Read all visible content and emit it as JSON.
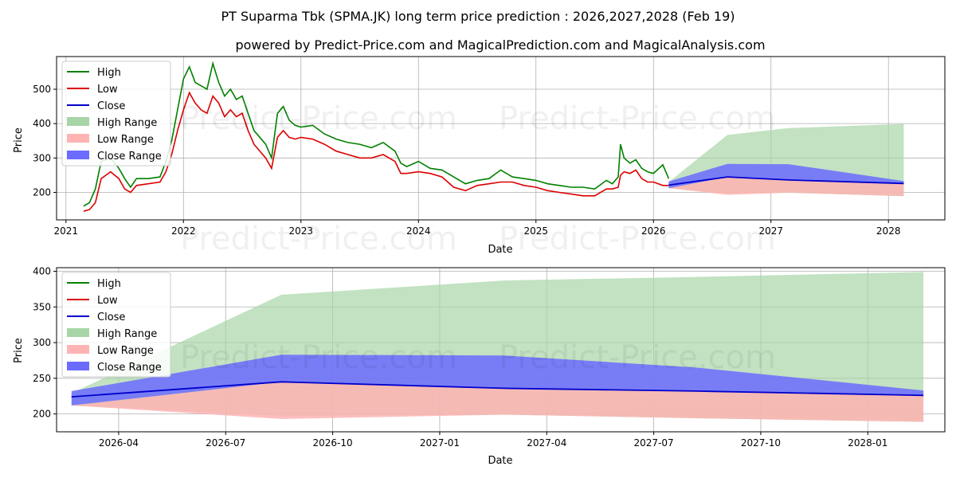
{
  "title_line1": "PT Suparma Tbk (SPMA.JK) long term price prediction : 2026,2027,2028 (Feb 19)",
  "title_line2": "powered by Predict-Price.com and MagicalPrediction.com and MagicalAnalysis.com",
  "watermark": "Predict-Price.com",
  "colors": {
    "high": "#008000",
    "low": "#ff0000",
    "close": "#0000cc",
    "high_range": "#a8d5a8",
    "low_range": "#ffb3b3",
    "close_range": "#6b6bff",
    "grid": "#b0b0b0"
  },
  "chart_data": [
    {
      "type": "line",
      "xlabel": "Date",
      "ylabel": "Price",
      "xlim": [
        2020.92,
        2028.48
      ],
      "ylim": [
        120,
        595
      ],
      "x_ticks": [
        2021,
        2022,
        2023,
        2024,
        2025,
        2026,
        2027,
        2028
      ],
      "x_tick_labels": [
        "2021",
        "2022",
        "2023",
        "2024",
        "2025",
        "2026",
        "2027",
        "2028"
      ],
      "y_ticks": [
        200,
        300,
        400,
        500
      ],
      "y_tick_labels": [
        "200",
        "300",
        "400",
        "500"
      ],
      "legend": [
        "High",
        "Low",
        "Close",
        "High Range",
        "Low Range",
        "Close Range"
      ],
      "legend_position": "top-left",
      "grid": true,
      "history": {
        "x": [
          2021.15,
          2021.2,
          2021.25,
          2021.3,
          2021.38,
          2021.45,
          2021.5,
          2021.55,
          2021.6,
          2021.7,
          2021.8,
          2021.85,
          2021.9,
          2021.95,
          2022.0,
          2022.05,
          2022.1,
          2022.15,
          2022.2,
          2022.25,
          2022.3,
          2022.35,
          2022.4,
          2022.45,
          2022.5,
          2022.55,
          2022.6,
          2022.7,
          2022.75,
          2022.8,
          2022.85,
          2022.9,
          2022.95,
          2023.0,
          2023.1,
          2023.2,
          2023.3,
          2023.4,
          2023.5,
          2023.6,
          2023.7,
          2023.8,
          2023.85,
          2023.9,
          2024.0,
          2024.1,
          2024.2,
          2024.3,
          2024.4,
          2024.5,
          2024.6,
          2024.7,
          2024.8,
          2024.9,
          2025.0,
          2025.1,
          2025.2,
          2025.3,
          2025.4,
          2025.5,
          2025.6,
          2025.65,
          2025.7,
          2025.72,
          2025.75,
          2025.8,
          2025.85,
          2025.9,
          2025.95,
          2026.0,
          2026.08,
          2026.13
        ],
        "high": [
          160,
          170,
          210,
          290,
          300,
          270,
          240,
          215,
          240,
          240,
          245,
          290,
          350,
          440,
          530,
          565,
          520,
          510,
          500,
          575,
          520,
          480,
          500,
          470,
          480,
          430,
          380,
          340,
          300,
          430,
          450,
          410,
          395,
          390,
          395,
          370,
          355,
          345,
          340,
          330,
          345,
          320,
          285,
          275,
          290,
          270,
          265,
          245,
          225,
          235,
          240,
          265,
          245,
          240,
          235,
          225,
          220,
          215,
          215,
          210,
          235,
          225,
          245,
          340,
          300,
          285,
          295,
          270,
          260,
          255,
          280,
          240
        ],
        "low": [
          145,
          150,
          170,
          240,
          260,
          240,
          210,
          200,
          220,
          225,
          230,
          260,
          310,
          380,
          440,
          490,
          460,
          440,
          430,
          480,
          460,
          420,
          440,
          420,
          430,
          380,
          340,
          300,
          270,
          360,
          380,
          360,
          355,
          360,
          355,
          340,
          320,
          310,
          300,
          300,
          310,
          290,
          255,
          255,
          260,
          255,
          245,
          215,
          205,
          220,
          225,
          230,
          230,
          220,
          215,
          205,
          200,
          195,
          190,
          190,
          210,
          210,
          215,
          250,
          260,
          255,
          265,
          240,
          230,
          230,
          220,
          220
        ]
      },
      "forecast": {
        "x": [
          2026.13,
          2026.63,
          2027.15,
          2028.13
        ],
        "close": [
          221,
          245,
          236,
          226
        ],
        "high_range": {
          "upper": [
            230,
            367,
            387,
            399
          ],
          "lower": [
            212,
            197,
            199,
            189
          ]
        },
        "low_range": {
          "upper": [
            212,
            245,
            236,
            226
          ],
          "lower": [
            212,
            193,
            199,
            189
          ]
        },
        "close_range": {
          "upper": [
            232,
            283,
            282,
            233
          ],
          "lower": [
            212,
            245,
            236,
            226
          ]
        }
      }
    },
    {
      "type": "line",
      "xlabel": "Date",
      "ylabel": "Price",
      "xlim": [
        2026.105,
        2028.18
      ],
      "ylim": [
        175,
        405
      ],
      "x_ticks": [
        2026.25,
        2026.5,
        2026.75,
        2027.0,
        2027.25,
        2027.5,
        2027.75,
        2028.0
      ],
      "x_tick_labels": [
        "2026-04",
        "2026-07",
        "2026-10",
        "2027-01",
        "2027-04",
        "2027-07",
        "2027-10",
        "2028-01"
      ],
      "y_ticks": [
        200,
        250,
        300,
        350,
        400
      ],
      "y_tick_labels": [
        "200",
        "250",
        "300",
        "350",
        "400"
      ],
      "legend": [
        "High",
        "Low",
        "Close",
        "High Range",
        "Low Range",
        "Close Range"
      ],
      "legend_position": "top-left",
      "grid": true,
      "forecast": {
        "x": [
          2026.14,
          2026.63,
          2027.15,
          2027.6,
          2028.13
        ],
        "close": [
          224,
          245,
          236,
          232,
          226
        ],
        "high_range": {
          "upper": [
            229,
            367,
            387,
            392,
            399
          ],
          "lower": [
            212,
            197,
            199,
            194,
            189
          ]
        },
        "low_range": {
          "upper": [
            212,
            245,
            236,
            232,
            226
          ],
          "lower": [
            212,
            193,
            199,
            194,
            189
          ]
        },
        "close_range": {
          "upper": [
            232,
            283,
            282,
            265,
            233
          ],
          "lower": [
            212,
            245,
            236,
            232,
            226
          ]
        }
      }
    }
  ]
}
